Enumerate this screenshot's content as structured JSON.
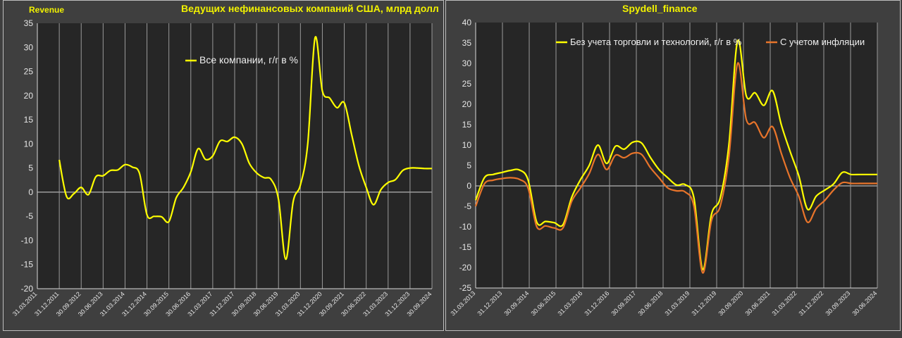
{
  "header": {
    "left_tag": "Revenue",
    "left_title": "Ведущих нефинансовых компаний США, млрд долл",
    "right_title": "Spydell_finance"
  },
  "colors": {
    "background": "#3f3f3f",
    "yellow": "#ffff00",
    "orange": "#e8742a",
    "title": "#f2f200",
    "axis_text": "#e6e6e6",
    "plot_area": "#262626"
  },
  "chart_data": [
    {
      "type": "line",
      "ylim": [
        -20,
        35
      ],
      "yticks": [
        35,
        30,
        25,
        20,
        15,
        10,
        5,
        0,
        -5,
        -10,
        -15,
        -20
      ],
      "x_range": [
        2011.25,
        2024.75
      ],
      "xtick_labels": [
        "31.03.2011",
        "31.12.2011",
        "30.09.2012",
        "30.06.2013",
        "31.03.2014",
        "31.12.2014",
        "30.09.2015",
        "30.06.2016",
        "31.03.2017",
        "31.12.2017",
        "30.09.2018",
        "30.06.2019",
        "31.03.2020",
        "31.12.2020",
        "30.09.2021",
        "30.06.2022",
        "31.03.2023",
        "31.12.2023",
        "30.09.2024"
      ],
      "legend_position": "top-center",
      "series": [
        {
          "name": "Все компании, г/г в %",
          "color": "#ffff00",
          "x": [
            2012.0,
            2012.25,
            2012.5,
            2012.75,
            2013.0,
            2013.25,
            2013.5,
            2013.75,
            2014.0,
            2014.25,
            2014.5,
            2014.75,
            2015.0,
            2015.25,
            2015.5,
            2015.75,
            2016.0,
            2016.25,
            2016.5,
            2016.75,
            2017.0,
            2017.25,
            2017.5,
            2017.75,
            2018.0,
            2018.25,
            2018.5,
            2018.75,
            2019.0,
            2019.25,
            2019.5,
            2019.75,
            2020.0,
            2020.25,
            2020.5,
            2020.75,
            2021.0,
            2021.25,
            2021.5,
            2021.75,
            2022.0,
            2022.25,
            2022.5,
            2022.75,
            2023.0,
            2023.25,
            2023.5,
            2023.75,
            2024.0,
            2024.25,
            2024.5,
            2024.75
          ],
          "y": [
            6.7,
            -0.9,
            -0.3,
            1.0,
            -0.5,
            3.2,
            3.4,
            4.5,
            4.6,
            5.7,
            5.2,
            3.8,
            -4.7,
            -5.0,
            -5.1,
            -6.1,
            -1.2,
            1.0,
            4.2,
            9.0,
            6.8,
            7.5,
            10.6,
            10.5,
            11.4,
            10.0,
            6.0,
            4.0,
            3.0,
            2.6,
            -1.5,
            -13.9,
            -2.0,
            1.5,
            10.0,
            32.0,
            21.0,
            19.5,
            17.5,
            18.5,
            12.0,
            5.5,
            1.0,
            -2.6,
            0.5,
            2.0,
            2.6,
            4.5,
            5.0,
            5.0,
            4.9,
            4.9
          ]
        }
      ]
    },
    {
      "type": "line",
      "ylim": [
        -25,
        40
      ],
      "yticks": [
        40,
        35,
        30,
        25,
        20,
        15,
        10,
        5,
        0,
        -5,
        -10,
        -15,
        -20,
        -25
      ],
      "x_range": [
        2013.25,
        2024.75
      ],
      "xtick_labels": [
        "31.03.2013",
        "31.12.2013",
        "30.09.2014",
        "30.06.2015",
        "31.03.2016",
        "31.12.2016",
        "30.09.2017",
        "30.06.2018",
        "31.03.2019",
        "31.12.2019",
        "30.09.2020",
        "30.06.2021",
        "31.03.2022",
        "31.12.2022",
        "30.09.2023",
        "30.06.2024"
      ],
      "legend_position": "top",
      "series": [
        {
          "name": "Без учета торговли и технологий, г/г в %",
          "color": "#ffff00",
          "x": [
            2013.25,
            2013.5,
            2013.75,
            2014.0,
            2014.25,
            2014.5,
            2014.75,
            2015.0,
            2015.25,
            2015.5,
            2015.75,
            2016.0,
            2016.25,
            2016.5,
            2016.75,
            2017.0,
            2017.25,
            2017.5,
            2017.75,
            2018.0,
            2018.25,
            2018.5,
            2018.75,
            2019.0,
            2019.25,
            2019.5,
            2019.75,
            2020.0,
            2020.25,
            2020.5,
            2020.75,
            2021.0,
            2021.25,
            2021.5,
            2021.75,
            2022.0,
            2022.25,
            2022.5,
            2022.75,
            2023.0,
            2023.25,
            2023.5,
            2023.75,
            2024.0,
            2024.25,
            2024.5,
            2024.75
          ],
          "y": [
            -3.5,
            2.0,
            2.8,
            3.3,
            3.8,
            3.9,
            1.5,
            -8.9,
            -8.7,
            -9.0,
            -9.5,
            -2.8,
            1.5,
            5.0,
            10.0,
            5.5,
            9.7,
            9.0,
            10.7,
            10.5,
            7.0,
            4.0,
            2.0,
            0.2,
            0.3,
            -3.0,
            -20.5,
            -7.0,
            -3.0,
            10.0,
            35.5,
            22.0,
            22.8,
            19.7,
            23.3,
            15.0,
            8.5,
            2.5,
            -5.7,
            -2.5,
            -1.0,
            0.5,
            3.3,
            2.8,
            2.8,
            2.8,
            2.8
          ]
        },
        {
          "name": "С учетом инфляции",
          "color": "#e8742a",
          "x": [
            2013.25,
            2013.5,
            2013.75,
            2014.0,
            2014.25,
            2014.5,
            2014.75,
            2015.0,
            2015.25,
            2015.5,
            2015.75,
            2016.0,
            2016.25,
            2016.5,
            2016.75,
            2017.0,
            2017.25,
            2017.5,
            2017.75,
            2018.0,
            2018.25,
            2018.5,
            2018.75,
            2019.0,
            2019.25,
            2019.5,
            2019.75,
            2020.0,
            2020.25,
            2020.5,
            2020.75,
            2021.0,
            2021.25,
            2021.5,
            2021.75,
            2022.0,
            2022.25,
            2022.5,
            2022.75,
            2023.0,
            2023.25,
            2023.5,
            2023.75,
            2024.0,
            2024.25,
            2024.5,
            2024.75
          ],
          "y": [
            -5.0,
            0.5,
            1.4,
            1.8,
            2.0,
            1.6,
            -0.5,
            -10.0,
            -9.8,
            -10.3,
            -10.3,
            -3.8,
            -0.5,
            3.0,
            7.7,
            4.0,
            7.5,
            6.9,
            8.0,
            7.7,
            4.5,
            2.0,
            -0.5,
            -1.2,
            -1.5,
            -5.0,
            -21.3,
            -8.5,
            -5.0,
            7.0,
            30.0,
            16.2,
            15.5,
            11.8,
            14.5,
            8.0,
            2.0,
            -2.5,
            -8.9,
            -5.5,
            -3.5,
            -1.0,
            0.8,
            0.6,
            0.6,
            0.6,
            0.6
          ]
        }
      ]
    }
  ]
}
